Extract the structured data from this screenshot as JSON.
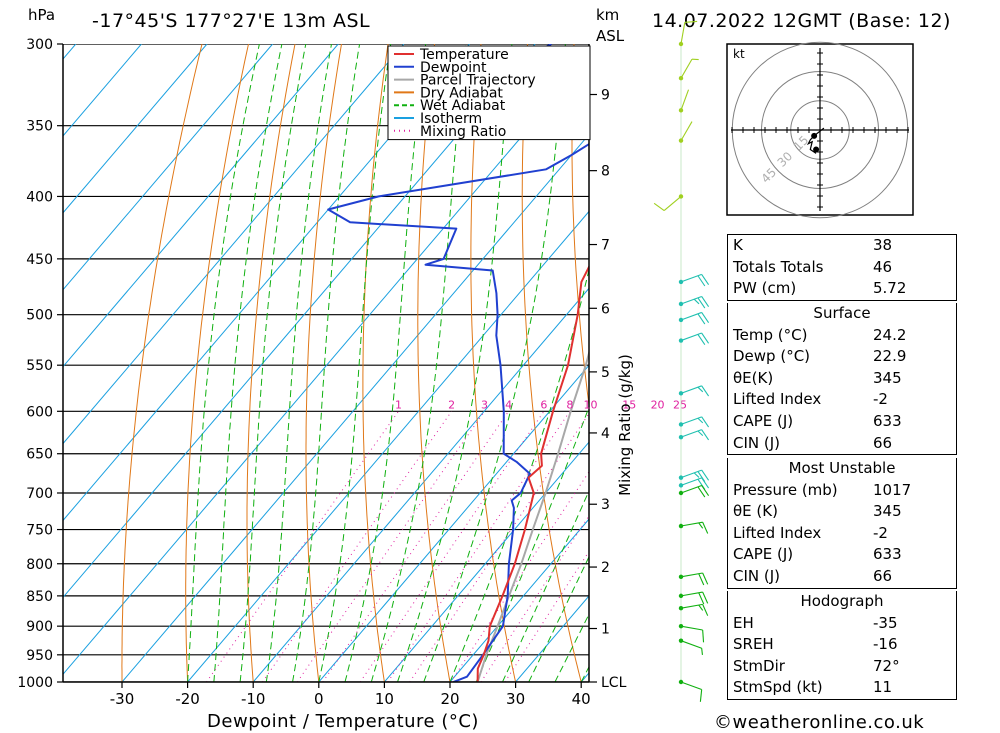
{
  "header": {
    "location": "-17°45'S  177°27'E  13m  ASL",
    "datetime": "14.07.2022  12GMT  (Base: 12)",
    "pressure_unit": "hPa",
    "height_unit": "km",
    "height_ref": "ASL"
  },
  "credit": "©weatheronline.co.uk",
  "colors": {
    "temperature": "#e03030",
    "dewpoint": "#2040d0",
    "parcel": "#a8a8a8",
    "dry_adiabat": "#e07818",
    "wet_adiabat": "#10b010",
    "isotherm": "#1aa0e0",
    "mixing_ratio": "#e020a0"
  },
  "chart_data": {
    "type": "line",
    "title": "",
    "xlabel": "Dewpoint / Temperature (°C)",
    "ylabel": "",
    "right_axis_label": "Mixing Ratio (g/kg)",
    "xlim": [
      -40,
      40
    ],
    "ylim": [
      1000,
      300
    ],
    "x_ticks": [
      -30,
      -20,
      -10,
      0,
      10,
      20,
      30,
      40
    ],
    "pressure_levels": [
      300,
      350,
      400,
      450,
      500,
      550,
      600,
      650,
      700,
      750,
      800,
      850,
      900,
      950,
      1000
    ],
    "height_ticks": [
      {
        "label": "9",
        "p": 330
      },
      {
        "label": "8",
        "p": 381
      },
      {
        "label": "7",
        "p": 438
      },
      {
        "label": "6",
        "p": 494
      },
      {
        "label": "5",
        "p": 557
      },
      {
        "label": "4",
        "p": 625
      },
      {
        "label": "3",
        "p": 715
      },
      {
        "label": "2",
        "p": 805
      },
      {
        "label": "1",
        "p": 904
      },
      {
        "label": "LCL",
        "p": 1000
      }
    ],
    "mixing_ratio_labels": [
      "1",
      "2",
      "3",
      "4",
      "6",
      "8",
      "10",
      "15",
      "20",
      "25"
    ],
    "mixing_ratio_values": [
      1,
      2,
      3,
      4,
      6,
      8,
      10,
      15,
      20,
      25
    ],
    "mixing_ratio_label_p": 600,
    "legend": [
      "Temperature",
      "Dewpoint",
      "Parcel Trajectory",
      "Dry Adiabat",
      "Wet Adiabat",
      "Isotherm",
      "Mixing Ratio"
    ],
    "legend_position": "top-right",
    "series": [
      {
        "name": "Temperature",
        "points": [
          [
            1000,
            24.2
          ],
          [
            975,
            22.5
          ],
          [
            950,
            21.6
          ],
          [
            925,
            20.5
          ],
          [
            900,
            18.8
          ],
          [
            850,
            16.8
          ],
          [
            800,
            14.5
          ],
          [
            750,
            11.6
          ],
          [
            700,
            8.2
          ],
          [
            680,
            5.4
          ],
          [
            665,
            5.9
          ],
          [
            650,
            4.2
          ],
          [
            600,
            0.5
          ],
          [
            550,
            -3.2
          ],
          [
            500,
            -8.3
          ],
          [
            470,
            -12.0
          ],
          [
            450,
            -13.2
          ],
          [
            430,
            -14.5
          ],
          [
            400,
            -18.0
          ],
          [
            370,
            -22.3
          ],
          [
            350,
            -25.8
          ],
          [
            320,
            -30.5
          ],
          [
            300,
            -35.5
          ]
        ]
      },
      {
        "name": "Dewpoint",
        "points": [
          [
            1000,
            20.5
          ],
          [
            990,
            21.9
          ],
          [
            950,
            21.5
          ],
          [
            900,
            20.8
          ],
          [
            850,
            17.6
          ],
          [
            800,
            13.6
          ],
          [
            750,
            9.8
          ],
          [
            720,
            7.1
          ],
          [
            710,
            5.8
          ],
          [
            700,
            6.2
          ],
          [
            675,
            5.1
          ],
          [
            660,
            1.5
          ],
          [
            650,
            -1.5
          ],
          [
            600,
            -7.0
          ],
          [
            550,
            -13.5
          ],
          [
            520,
            -18.0
          ],
          [
            500,
            -20.5
          ],
          [
            480,
            -23.5
          ],
          [
            460,
            -27.0
          ],
          [
            455,
            -38.0
          ],
          [
            450,
            -36.0
          ],
          [
            425,
            -38.0
          ],
          [
            420,
            -55.0
          ],
          [
            410,
            -60.0
          ],
          [
            400,
            -54.0
          ],
          [
            380,
            -32.0
          ],
          [
            370,
            -30.0
          ],
          [
            355,
            -27.5
          ],
          [
            350,
            -35.0
          ],
          [
            310,
            -53.0
          ],
          [
            305,
            -49.0
          ],
          [
            300,
            -47.5
          ]
        ]
      },
      {
        "name": "Parcel Trajectory",
        "points": [
          [
            1000,
            24.2
          ],
          [
            950,
            22.0
          ],
          [
            900,
            20.0
          ],
          [
            850,
            17.8
          ],
          [
            800,
            15.5
          ],
          [
            750,
            12.8
          ],
          [
            700,
            10.0
          ],
          [
            650,
            6.8
          ],
          [
            600,
            3.2
          ],
          [
            550,
            -0.5
          ],
          [
            500,
            -5.0
          ],
          [
            450,
            -10.5
          ],
          [
            400,
            -17.0
          ],
          [
            370,
            -21.5
          ],
          [
            365,
            -22.5
          ]
        ]
      }
    ],
    "wind_barbs": [
      {
        "p": 300,
        "dir": 10,
        "kt": 10
      },
      {
        "p": 320,
        "dir": 30,
        "kt": 5
      },
      {
        "p": 340,
        "dir": 20,
        "kt": 3
      },
      {
        "p": 360,
        "dir": 30,
        "kt": 3
      },
      {
        "p": 400,
        "dir": 230,
        "kt": 10
      },
      {
        "p": 470,
        "dir": 70,
        "kt": 20
      },
      {
        "p": 490,
        "dir": 70,
        "kt": 25
      },
      {
        "p": 505,
        "dir": 70,
        "kt": 20
      },
      {
        "p": 525,
        "dir": 70,
        "kt": 20
      },
      {
        "p": 580,
        "dir": 70,
        "kt": 15
      },
      {
        "p": 615,
        "dir": 70,
        "kt": 15
      },
      {
        "p": 630,
        "dir": 70,
        "kt": 15
      },
      {
        "p": 680,
        "dir": 70,
        "kt": 25
      },
      {
        "p": 690,
        "dir": 70,
        "kt": 20
      },
      {
        "p": 700,
        "dir": 70,
        "kt": 20
      },
      {
        "p": 745,
        "dir": 80,
        "kt": 15
      },
      {
        "p": 820,
        "dir": 80,
        "kt": 20
      },
      {
        "p": 850,
        "dir": 80,
        "kt": 20
      },
      {
        "p": 870,
        "dir": 80,
        "kt": 15
      },
      {
        "p": 900,
        "dir": 100,
        "kt": 10
      },
      {
        "p": 925,
        "dir": 110,
        "kt": 5
      },
      {
        "p": 1000,
        "dir": 110,
        "kt": 10
      }
    ]
  },
  "hodograph": {
    "unit": "kt",
    "ring_labels": [
      "15",
      "30",
      "45"
    ],
    "ring_values_kt": [
      15,
      30,
      45
    ],
    "trace": [
      [
        2,
        1
      ],
      [
        -3,
        -3
      ],
      [
        -5,
        -5
      ],
      [
        -6,
        -7
      ],
      [
        -4,
        -6
      ],
      [
        -5,
        -10
      ],
      [
        -2,
        -12
      ]
    ],
    "storm_motion": [
      -2,
      -10
    ]
  },
  "indices": {
    "top": [
      {
        "label": "K",
        "value": "38"
      },
      {
        "label": "Totals Totals",
        "value": "46"
      },
      {
        "label": "PW (cm)",
        "value": "5.72"
      }
    ],
    "surface": {
      "title": "Surface",
      "rows": [
        {
          "label": "Temp (°C)",
          "value": "24.2"
        },
        {
          "label": "Dewp (°C)",
          "value": "22.9"
        },
        {
          "label": "θE(K)",
          "value": "345"
        },
        {
          "label": "Lifted Index",
          "value": "-2"
        },
        {
          "label": "CAPE (J)",
          "value": "633"
        },
        {
          "label": "CIN (J)",
          "value": "66"
        }
      ]
    },
    "most_unstable": {
      "title": "Most Unstable",
      "rows": [
        {
          "label": "Pressure (mb)",
          "value": "1017"
        },
        {
          "label": "θE (K)",
          "value": "345"
        },
        {
          "label": "Lifted Index",
          "value": "-2"
        },
        {
          "label": "CAPE (J)",
          "value": "633"
        },
        {
          "label": "CIN (J)",
          "value": "66"
        }
      ]
    },
    "hodograph_stats": {
      "title": "Hodograph",
      "rows": [
        {
          "label": "EH",
          "value": "-35"
        },
        {
          "label": "SREH",
          "value": "-16"
        },
        {
          "label": "StmDir",
          "value": "72°"
        },
        {
          "label": "StmSpd (kt)",
          "value": "11"
        }
      ]
    }
  }
}
